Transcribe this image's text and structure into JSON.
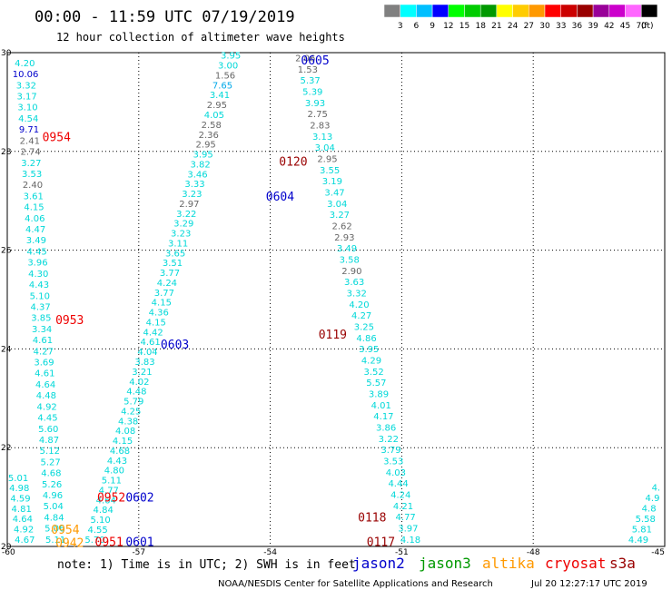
{
  "header": {
    "title": "00:00 - 11:59 UTC 07/19/2019",
    "subtitle": "12 hour collection of altimeter wave heights"
  },
  "legend": {
    "colors": [
      "#808080",
      "#00ffff",
      "#00bfff",
      "#0000ff",
      "#00ff00",
      "#00cc00",
      "#009900",
      "#ffff00",
      "#ffcc00",
      "#ff9900",
      "#ff0000",
      "#cc0000",
      "#990000",
      "#990099",
      "#cc00cc",
      "#ff66ff",
      "#000000"
    ],
    "labels": [
      "3",
      "6",
      "9",
      "12",
      "15",
      "18",
      "21",
      "24",
      "27",
      "30",
      "33",
      "36",
      "39",
      "42",
      "45",
      "70",
      "(ft)"
    ]
  },
  "footer": {
    "note": "note: 1) Time is in UTC; 2) SWH is in feet",
    "credit": "NOAA/NESDIS Center for Satellite Applications and Research",
    "timestamp": "Jul 20 12:27:17 UTC 2019",
    "satellites": [
      {
        "name": "jason2",
        "color": "#0000cc"
      },
      {
        "name": "jason3",
        "color": "#009900"
      },
      {
        "name": "altika",
        "color": "#ff9900"
      },
      {
        "name": "cryosat",
        "color": "#ee0000"
      },
      {
        "name": "s3a",
        "color": "#990000"
      }
    ]
  },
  "chart_data": {
    "type": "scatter",
    "xlim": [
      -60,
      -45
    ],
    "ylim": [
      20,
      30
    ],
    "xticks": [
      "-60",
      "-57",
      "-54",
      "-51",
      "-48",
      "-45"
    ],
    "yticks": [
      "30",
      "28",
      "26",
      "24",
      "22",
      "20"
    ],
    "grid": true,
    "tracks": [
      {
        "x0": -59.6,
        "y0": 29.8,
        "x1": -58.9,
        "y1": 20.15,
        "values": [
          "4.20",
          "10.06",
          "3.32",
          "3.17",
          "3.10",
          "4.54",
          "9.71",
          "2.41",
          "2.74",
          "3.27",
          "3.53",
          "2.40",
          "3.61",
          "4.15",
          "4.06",
          "4.47",
          "3.49",
          "4.45",
          "3.96",
          "4.30",
          "4.43",
          "5.10",
          "4.37",
          "3.85",
          "3.34",
          "4.61",
          "4.27",
          "3.69",
          "4.61",
          "4.64",
          "4.48",
          "4.92",
          "4.45",
          "5.60",
          "4.87",
          "5.12",
          "5.27",
          "4.68",
          "5.26",
          "4.96",
          "5.04",
          "4.84",
          "5.06",
          "5.11"
        ]
      },
      {
        "x0": -59.75,
        "y0": 21.4,
        "x1": -59.6,
        "y1": 20.15,
        "values": [
          "5.01",
          "4.98",
          "4.59",
          "4.81",
          "4.64",
          "4.92",
          "4.67"
        ]
      },
      {
        "x0": -54.9,
        "y0": 29.95,
        "x1": -58.0,
        "y1": 20.15,
        "values": [
          "3.95",
          "3.00",
          "1.56",
          "7.65",
          "3.41",
          "2.95",
          "4.05",
          "2.58",
          "2.36",
          "2.95",
          "3.95",
          "3.82",
          "3.46",
          "3.33",
          "3.23",
          "2.97",
          "3.22",
          "3.29",
          "3.23",
          "3.11",
          "3.65",
          "3.51",
          "3.77",
          "4.24",
          "3.77",
          "4.15",
          "4.36",
          "4.15",
          "4.42",
          "4.61",
          "4.04",
          "3.83",
          "3.21",
          "4.02",
          "4.48",
          "5.79",
          "4.25",
          "4.38",
          "4.08",
          "4.15",
          "4.68",
          "4.43",
          "4.80",
          "5.11",
          "4.77",
          "4.64",
          "4.84",
          "5.10",
          "4.55",
          "5.70"
        ]
      },
      {
        "x0": -53.2,
        "y0": 29.9,
        "x1": -50.8,
        "y1": 20.15,
        "values": [
          "2.06",
          "1.53",
          "5.37",
          "5.39",
          "3.93",
          "2.75",
          "2.83",
          "3.13",
          "3.04",
          "2.95",
          "3.55",
          "3.19",
          "3.47",
          "3.04",
          "3.27",
          "2.62",
          "2.93",
          "3.49",
          "3.58",
          "2.90",
          "3.63",
          "3.32",
          "4.20",
          "4.27",
          "3.25",
          "4.86",
          "3.95",
          "4.29",
          "3.52",
          "5.57",
          "3.89",
          "4.01",
          "4.17",
          "3.86",
          "3.22",
          "3.79",
          "3.53",
          "4.03",
          "4.44",
          "4.24",
          "4.21",
          "4.77",
          "3.97",
          "4.18"
        ]
      },
      {
        "x0": -45.2,
        "y0": 21.2,
        "x1": -45.6,
        "y1": 20.15,
        "values": [
          "4.",
          "4.9",
          "4.8",
          "5.58",
          "5.81",
          "4.49"
        ]
      }
    ],
    "pass_labels": [
      {
        "text": "0605",
        "x": -53.3,
        "y": 29.85,
        "color": "#0000cc"
      },
      {
        "text": "0954",
        "x": -59.2,
        "y": 28.3,
        "color": "#ee0000"
      },
      {
        "text": "0120",
        "x": -53.8,
        "y": 27.8,
        "color": "#990000"
      },
      {
        "text": "0604",
        "x": -54.1,
        "y": 27.1,
        "color": "#0000cc"
      },
      {
        "text": "0953",
        "x": -58.9,
        "y": 24.6,
        "color": "#ee0000"
      },
      {
        "text": "0119",
        "x": -52.9,
        "y": 24.3,
        "color": "#990000"
      },
      {
        "text": "0603",
        "x": -56.5,
        "y": 24.1,
        "color": "#0000cc"
      },
      {
        "text": "0952",
        "x": -57.95,
        "y": 21.0,
        "color": "#ee0000"
      },
      {
        "text": "0602",
        "x": -57.3,
        "y": 21.0,
        "color": "#0000cc"
      },
      {
        "text": "0118",
        "x": -52.0,
        "y": 20.6,
        "color": "#990000"
      },
      {
        "text": "0954",
        "x": -59.0,
        "y": 20.35,
        "color": "#ff9900"
      },
      {
        "text": "0117",
        "x": -51.8,
        "y": 20.1,
        "color": "#990000"
      },
      {
        "text": "0942",
        "x": -58.9,
        "y": 20.08,
        "color": "#ff9900"
      },
      {
        "text": "0951",
        "x": -58.0,
        "y": 20.1,
        "color": "#ee0000"
      },
      {
        "text": "0601",
        "x": -57.3,
        "y": 20.1,
        "color": "#0000cc"
      }
    ]
  }
}
